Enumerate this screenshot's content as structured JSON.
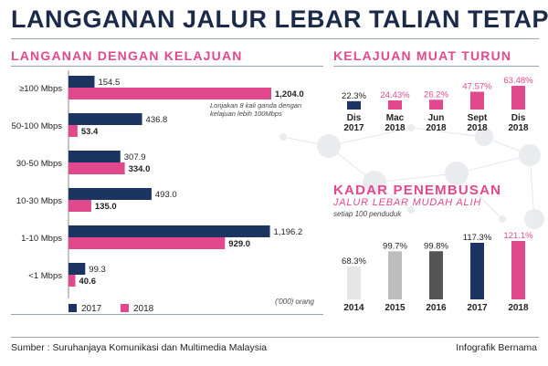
{
  "header": {
    "title": "LANGGANAN JALUR LEBAR TALIAN TETAP"
  },
  "speed_chart": {
    "section_title": "LANGANAN DENGAN KELAJUAN",
    "annotation_lines": [
      "Lonjakan 8 kali ganda dengan",
      "kelajuan lebih 100Mbps"
    ],
    "unit_note": "('000) orang",
    "legend": [
      {
        "label": "2017",
        "color": "#1c3461"
      },
      {
        "label": "2018",
        "color": "#e2498d"
      }
    ]
  },
  "download_speed": {
    "section_title": "KELAJUAN MUAT TURUN"
  },
  "penetration": {
    "title_line1": "KADAR PENEMBUSAN",
    "title_line2": "JALUR LEBAR MUDAH ALIH",
    "subtitle": "setiap 100 penduduk"
  },
  "footer": {
    "source": "Sumber : Suruhanjaya Komunikasi dan Multimedia Malaysia",
    "credit": "Infografik Bernama"
  },
  "chart_data": [
    {
      "type": "bar",
      "orientation": "horizontal",
      "categories": [
        "≥100 Mbps",
        "50-100 Mbps",
        "30-50 Mbps",
        "10-30 Mbps",
        "1-10 Mbps",
        "<1 Mbps"
      ],
      "series": [
        {
          "name": "2017",
          "values": [
            154.5,
            436.8,
            307.9,
            493.0,
            1196.2,
            99.3
          ],
          "labels": [
            "154.5",
            "436.8",
            "307.9",
            "493.0",
            "1,196.2",
            "99.3"
          ],
          "color": "#1c3461"
        },
        {
          "name": "2018",
          "values": [
            1204.0,
            53.4,
            334.0,
            135.0,
            929.0,
            40.6
          ],
          "labels": [
            "1,204.0",
            "53.4",
            "334.0",
            "135.0",
            "929.0",
            "40.6"
          ],
          "color": "#e2498d"
        }
      ],
      "xlim": [
        0,
        1204.0
      ],
      "legend_position": "bottom-left"
    },
    {
      "type": "bar",
      "categories": [
        "Dis\n2017",
        "Mac\n2018",
        "Jun\n2018",
        "Sept\n2018",
        "Dis\n2018"
      ],
      "values": [
        22.3,
        24.43,
        26.2,
        47.57,
        63.48
      ],
      "labels": [
        "22.3%",
        "24.43%",
        "26.2%",
        "47.57%",
        "63.48%"
      ],
      "colors": [
        "#1c3461",
        "#e2498d",
        "#e2498d",
        "#e2498d",
        "#e2498d"
      ],
      "label_colors": [
        "#222222",
        "#e2498d",
        "#e2498d",
        "#e2498d",
        "#e2498d"
      ],
      "ylim": [
        0,
        63.48
      ]
    },
    {
      "type": "bar",
      "categories": [
        "2014",
        "2015",
        "2016",
        "2017",
        "2018"
      ],
      "values": [
        68.3,
        99.7,
        99.8,
        117.3,
        121.1
      ],
      "labels": [
        "68.3%",
        "99.7%",
        "99.8%",
        "117.3%",
        "121.1%"
      ],
      "colors": [
        "#e6e6e6",
        "#bdbdbd",
        "#555555",
        "#1c3461",
        "#e2498d"
      ],
      "label_colors": [
        "#222222",
        "#222222",
        "#222222",
        "#222222",
        "#e2498d"
      ],
      "ylim": [
        0,
        121.1
      ]
    }
  ]
}
